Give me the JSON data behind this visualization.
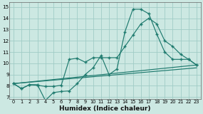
{
  "xlabel": "Humidex (Indice chaleur)",
  "bg_color": "#cce8e2",
  "grid_color": "#a0ccc6",
  "line_color": "#1e7a6e",
  "xlim": [
    -0.5,
    23.5
  ],
  "ylim": [
    6.8,
    15.4
  ],
  "xticks": [
    0,
    1,
    2,
    3,
    4,
    5,
    6,
    7,
    8,
    9,
    10,
    11,
    12,
    13,
    14,
    15,
    16,
    17,
    18,
    19,
    20,
    21,
    22,
    23
  ],
  "yticks": [
    7,
    8,
    9,
    10,
    11,
    12,
    13,
    14,
    15
  ],
  "line1_x": [
    0,
    1,
    2,
    3,
    4,
    5,
    6,
    7,
    8,
    9,
    10,
    11,
    12,
    13,
    14,
    15,
    16,
    17,
    18,
    19,
    20,
    21,
    22,
    23
  ],
  "line1_y": [
    8.2,
    7.75,
    8.1,
    8.1,
    6.7,
    7.4,
    7.5,
    7.55,
    8.2,
    9.0,
    9.6,
    10.7,
    9.0,
    9.5,
    12.8,
    14.8,
    14.8,
    14.4,
    12.6,
    11.0,
    10.35,
    10.35,
    10.35,
    9.85
  ],
  "line2_x": [
    0,
    1,
    2,
    3,
    4,
    5,
    6,
    7,
    8,
    9,
    10,
    11,
    12,
    13,
    14,
    15,
    16,
    17,
    18,
    19,
    20,
    21,
    22,
    23
  ],
  "line2_y": [
    8.2,
    7.75,
    8.1,
    8.05,
    7.95,
    7.95,
    8.05,
    10.35,
    10.45,
    10.1,
    10.5,
    10.5,
    10.5,
    10.5,
    11.5,
    12.5,
    13.5,
    14.0,
    13.5,
    12.0,
    11.5,
    10.8,
    10.35,
    9.85
  ],
  "line3_x": [
    0,
    23
  ],
  "line3_y": [
    8.2,
    9.85
  ],
  "line4_x": [
    0,
    23
  ],
  "line4_y": [
    8.2,
    9.6
  ]
}
